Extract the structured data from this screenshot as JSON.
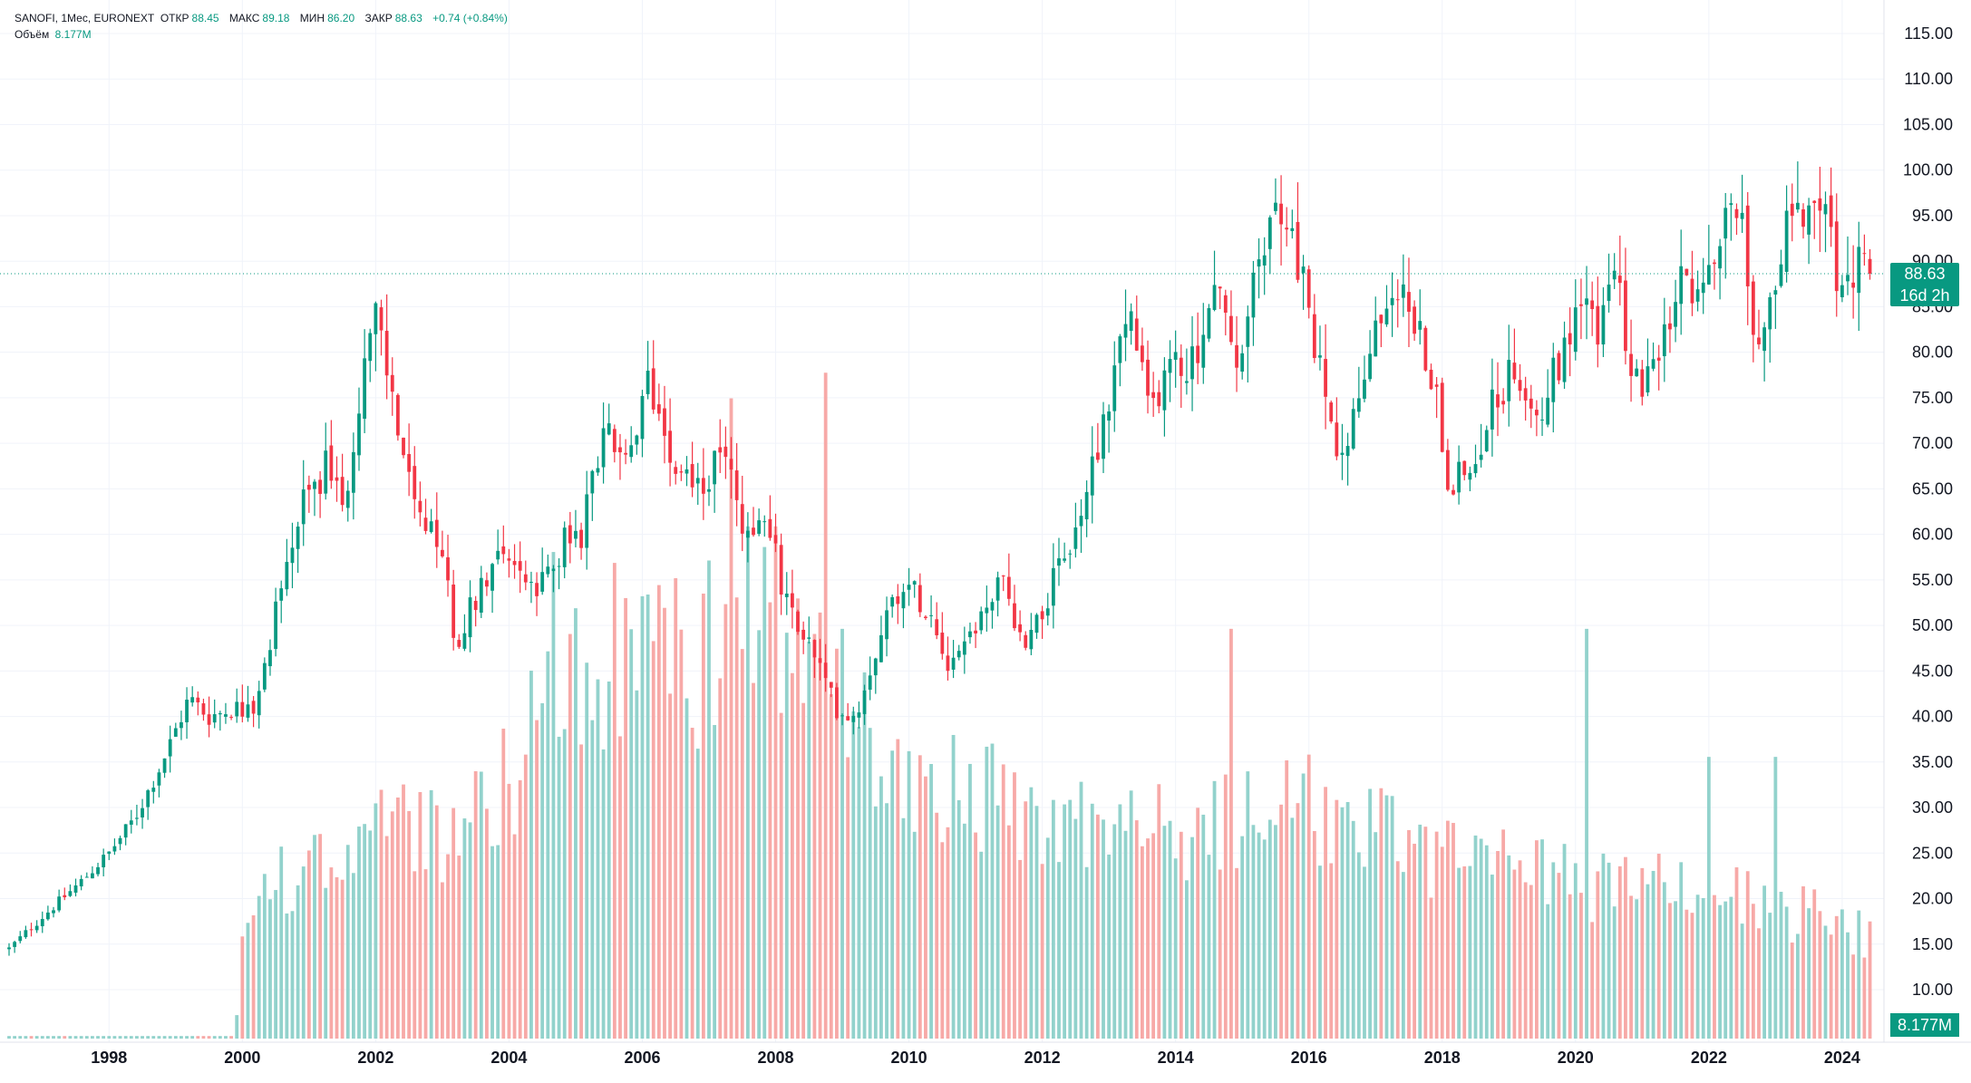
{
  "legend": {
    "symbol": "SANOFI, 1Мес, EURONEXT",
    "open_label": "ОТКР",
    "open": "88.45",
    "high_label": "МАКС",
    "high": "89.18",
    "low_label": "МИН",
    "low": "86.20",
    "close_label": "ЗАКР",
    "close": "88.63",
    "change": "+0.74 (+0.84%)",
    "volume_label": "Объём",
    "volume": "8.177M"
  },
  "price_tag": {
    "price": "88.63",
    "countdown": "16d 2h"
  },
  "volume_tag": "8.177M",
  "colors": {
    "up": "#089981",
    "down": "#F23645",
    "up_volume": "#92D2CC",
    "down_volume": "#F7A9A7",
    "grid": "#F0F3FA"
  },
  "chart_data": {
    "type": "candlestick",
    "interval": "1 month",
    "y_axis": {
      "min": 10,
      "max": 115,
      "ticks": [
        "115.00",
        "110.00",
        "105.00",
        "100.00",
        "95.00",
        "90.00",
        "85.00",
        "80.00",
        "75.00",
        "70.00",
        "65.00",
        "60.00",
        "55.00",
        "50.00",
        "45.00",
        "40.00",
        "35.00",
        "30.00",
        "25.00",
        "20.00",
        "15.00",
        "10.00"
      ]
    },
    "x_axis": {
      "start": 1996.5,
      "end": 2024.6,
      "ticks": [
        "1998",
        "2000",
        "2002",
        "2004",
        "2006",
        "2008",
        "2010",
        "2012",
        "2014",
        "2016",
        "2018",
        "2020",
        "2022",
        "2024"
      ]
    },
    "last_price": 88.63,
    "anchors": [
      {
        "t": 1996.5,
        "p": 14.5
      },
      {
        "t": 1997.0,
        "p": 18
      },
      {
        "t": 1997.6,
        "p": 22
      },
      {
        "t": 1998.0,
        "p": 25
      },
      {
        "t": 1998.4,
        "p": 29
      },
      {
        "t": 1998.8,
        "p": 35
      },
      {
        "t": 1999.2,
        "p": 42
      },
      {
        "t": 1999.5,
        "p": 40
      },
      {
        "t": 1999.9,
        "p": 41
      },
      {
        "t": 2000.2,
        "p": 40
      },
      {
        "t": 2000.5,
        "p": 52
      },
      {
        "t": 2000.9,
        "p": 63
      },
      {
        "t": 2001.3,
        "p": 68
      },
      {
        "t": 2001.5,
        "p": 62
      },
      {
        "t": 2001.8,
        "p": 78
      },
      {
        "t": 2002.0,
        "p": 84
      },
      {
        "t": 2002.3,
        "p": 73
      },
      {
        "t": 2002.6,
        "p": 62
      },
      {
        "t": 2003.0,
        "p": 58
      },
      {
        "t": 2003.2,
        "p": 48
      },
      {
        "t": 2003.6,
        "p": 55
      },
      {
        "t": 2003.9,
        "p": 59
      },
      {
        "t": 2004.4,
        "p": 53
      },
      {
        "t": 2004.8,
        "p": 59
      },
      {
        "t": 2005.1,
        "p": 60
      },
      {
        "t": 2005.4,
        "p": 72
      },
      {
        "t": 2005.8,
        "p": 67
      },
      {
        "t": 2006.1,
        "p": 77
      },
      {
        "t": 2006.5,
        "p": 68
      },
      {
        "t": 2006.9,
        "p": 65
      },
      {
        "t": 2007.3,
        "p": 70
      },
      {
        "t": 2007.5,
        "p": 60
      },
      {
        "t": 2007.9,
        "p": 62
      },
      {
        "t": 2008.1,
        "p": 53
      },
      {
        "t": 2008.5,
        "p": 48
      },
      {
        "t": 2008.9,
        "p": 41
      },
      {
        "t": 2009.2,
        "p": 40
      },
      {
        "t": 2009.6,
        "p": 50
      },
      {
        "t": 2009.9,
        "p": 55
      },
      {
        "t": 2010.3,
        "p": 52
      },
      {
        "t": 2010.6,
        "p": 46
      },
      {
        "t": 2011.0,
        "p": 50
      },
      {
        "t": 2011.4,
        "p": 55
      },
      {
        "t": 2011.7,
        "p": 48
      },
      {
        "t": 2012.0,
        "p": 52
      },
      {
        "t": 2012.5,
        "p": 60
      },
      {
        "t": 2012.9,
        "p": 72
      },
      {
        "t": 2013.3,
        "p": 85
      },
      {
        "t": 2013.6,
        "p": 73
      },
      {
        "t": 2013.9,
        "p": 79
      },
      {
        "t": 2014.2,
        "p": 78
      },
      {
        "t": 2014.7,
        "p": 88
      },
      {
        "t": 2014.9,
        "p": 76
      },
      {
        "t": 2015.3,
        "p": 92
      },
      {
        "t": 2015.6,
        "p": 96
      },
      {
        "t": 2015.9,
        "p": 88
      },
      {
        "t": 2016.1,
        "p": 80
      },
      {
        "t": 2016.4,
        "p": 70
      },
      {
        "t": 2016.7,
        "p": 73
      },
      {
        "t": 2017.1,
        "p": 85
      },
      {
        "t": 2017.3,
        "p": 88
      },
      {
        "t": 2017.6,
        "p": 83
      },
      {
        "t": 2017.9,
        "p": 76
      },
      {
        "t": 2018.1,
        "p": 66
      },
      {
        "t": 2018.4,
        "p": 67
      },
      {
        "t": 2018.8,
        "p": 75
      },
      {
        "t": 2019.1,
        "p": 78
      },
      {
        "t": 2019.5,
        "p": 74
      },
      {
        "t": 2019.9,
        "p": 82
      },
      {
        "t": 2020.1,
        "p": 88
      },
      {
        "t": 2020.3,
        "p": 82
      },
      {
        "t": 2020.6,
        "p": 88
      },
      {
        "t": 2020.9,
        "p": 77
      },
      {
        "t": 2021.2,
        "p": 77
      },
      {
        "t": 2021.6,
        "p": 88
      },
      {
        "t": 2021.9,
        "p": 85
      },
      {
        "t": 2022.3,
        "p": 97
      },
      {
        "t": 2022.5,
        "p": 97
      },
      {
        "t": 2022.7,
        "p": 80
      },
      {
        "t": 2022.9,
        "p": 86
      },
      {
        "t": 2023.3,
        "p": 97
      },
      {
        "t": 2023.6,
        "p": 94
      },
      {
        "t": 2023.8,
        "p": 100
      },
      {
        "t": 2023.9,
        "p": 87
      },
      {
        "t": 2024.1,
        "p": 86
      },
      {
        "t": 2024.3,
        "p": 92
      },
      {
        "t": 2024.4,
        "p": 88.63
      }
    ],
    "volume_anchors": [
      {
        "t": 1996.5,
        "v": 0.1
      },
      {
        "t": 1999.9,
        "v": 0.1
      },
      {
        "t": 2000.0,
        "v": 5
      },
      {
        "t": 2001.0,
        "v": 7
      },
      {
        "t": 2002.0,
        "v": 8
      },
      {
        "t": 2003.0,
        "v": 8
      },
      {
        "t": 2004.0,
        "v": 10
      },
      {
        "t": 2005.0,
        "v": 15
      },
      {
        "t": 2006.0,
        "v": 15
      },
      {
        "t": 2007.0,
        "v": 15
      },
      {
        "t": 2008.0,
        "v": 16
      },
      {
        "t": 2009.0,
        "v": 13
      },
      {
        "t": 2010.0,
        "v": 10
      },
      {
        "t": 2012.0,
        "v": 9
      },
      {
        "t": 2014.0,
        "v": 8
      },
      {
        "t": 2016.0,
        "v": 9
      },
      {
        "t": 2018.0,
        "v": 7
      },
      {
        "t": 2020.0,
        "v": 6
      },
      {
        "t": 2022.0,
        "v": 6
      },
      {
        "t": 2024.4,
        "v": 4
      }
    ],
    "volume_spikes": [
      {
        "t": 2004.65,
        "v": 19
      },
      {
        "t": 2007.35,
        "v": 25
      },
      {
        "t": 2007.6,
        "v": 20
      },
      {
        "t": 2008.0,
        "v": 20
      },
      {
        "t": 2008.75,
        "v": 26
      },
      {
        "t": 2009.0,
        "v": 16
      },
      {
        "t": 2014.8,
        "v": 16
      },
      {
        "t": 2020.2,
        "v": 16
      },
      {
        "t": 2022.0,
        "v": 11
      },
      {
        "t": 2023.0,
        "v": 11
      }
    ]
  }
}
